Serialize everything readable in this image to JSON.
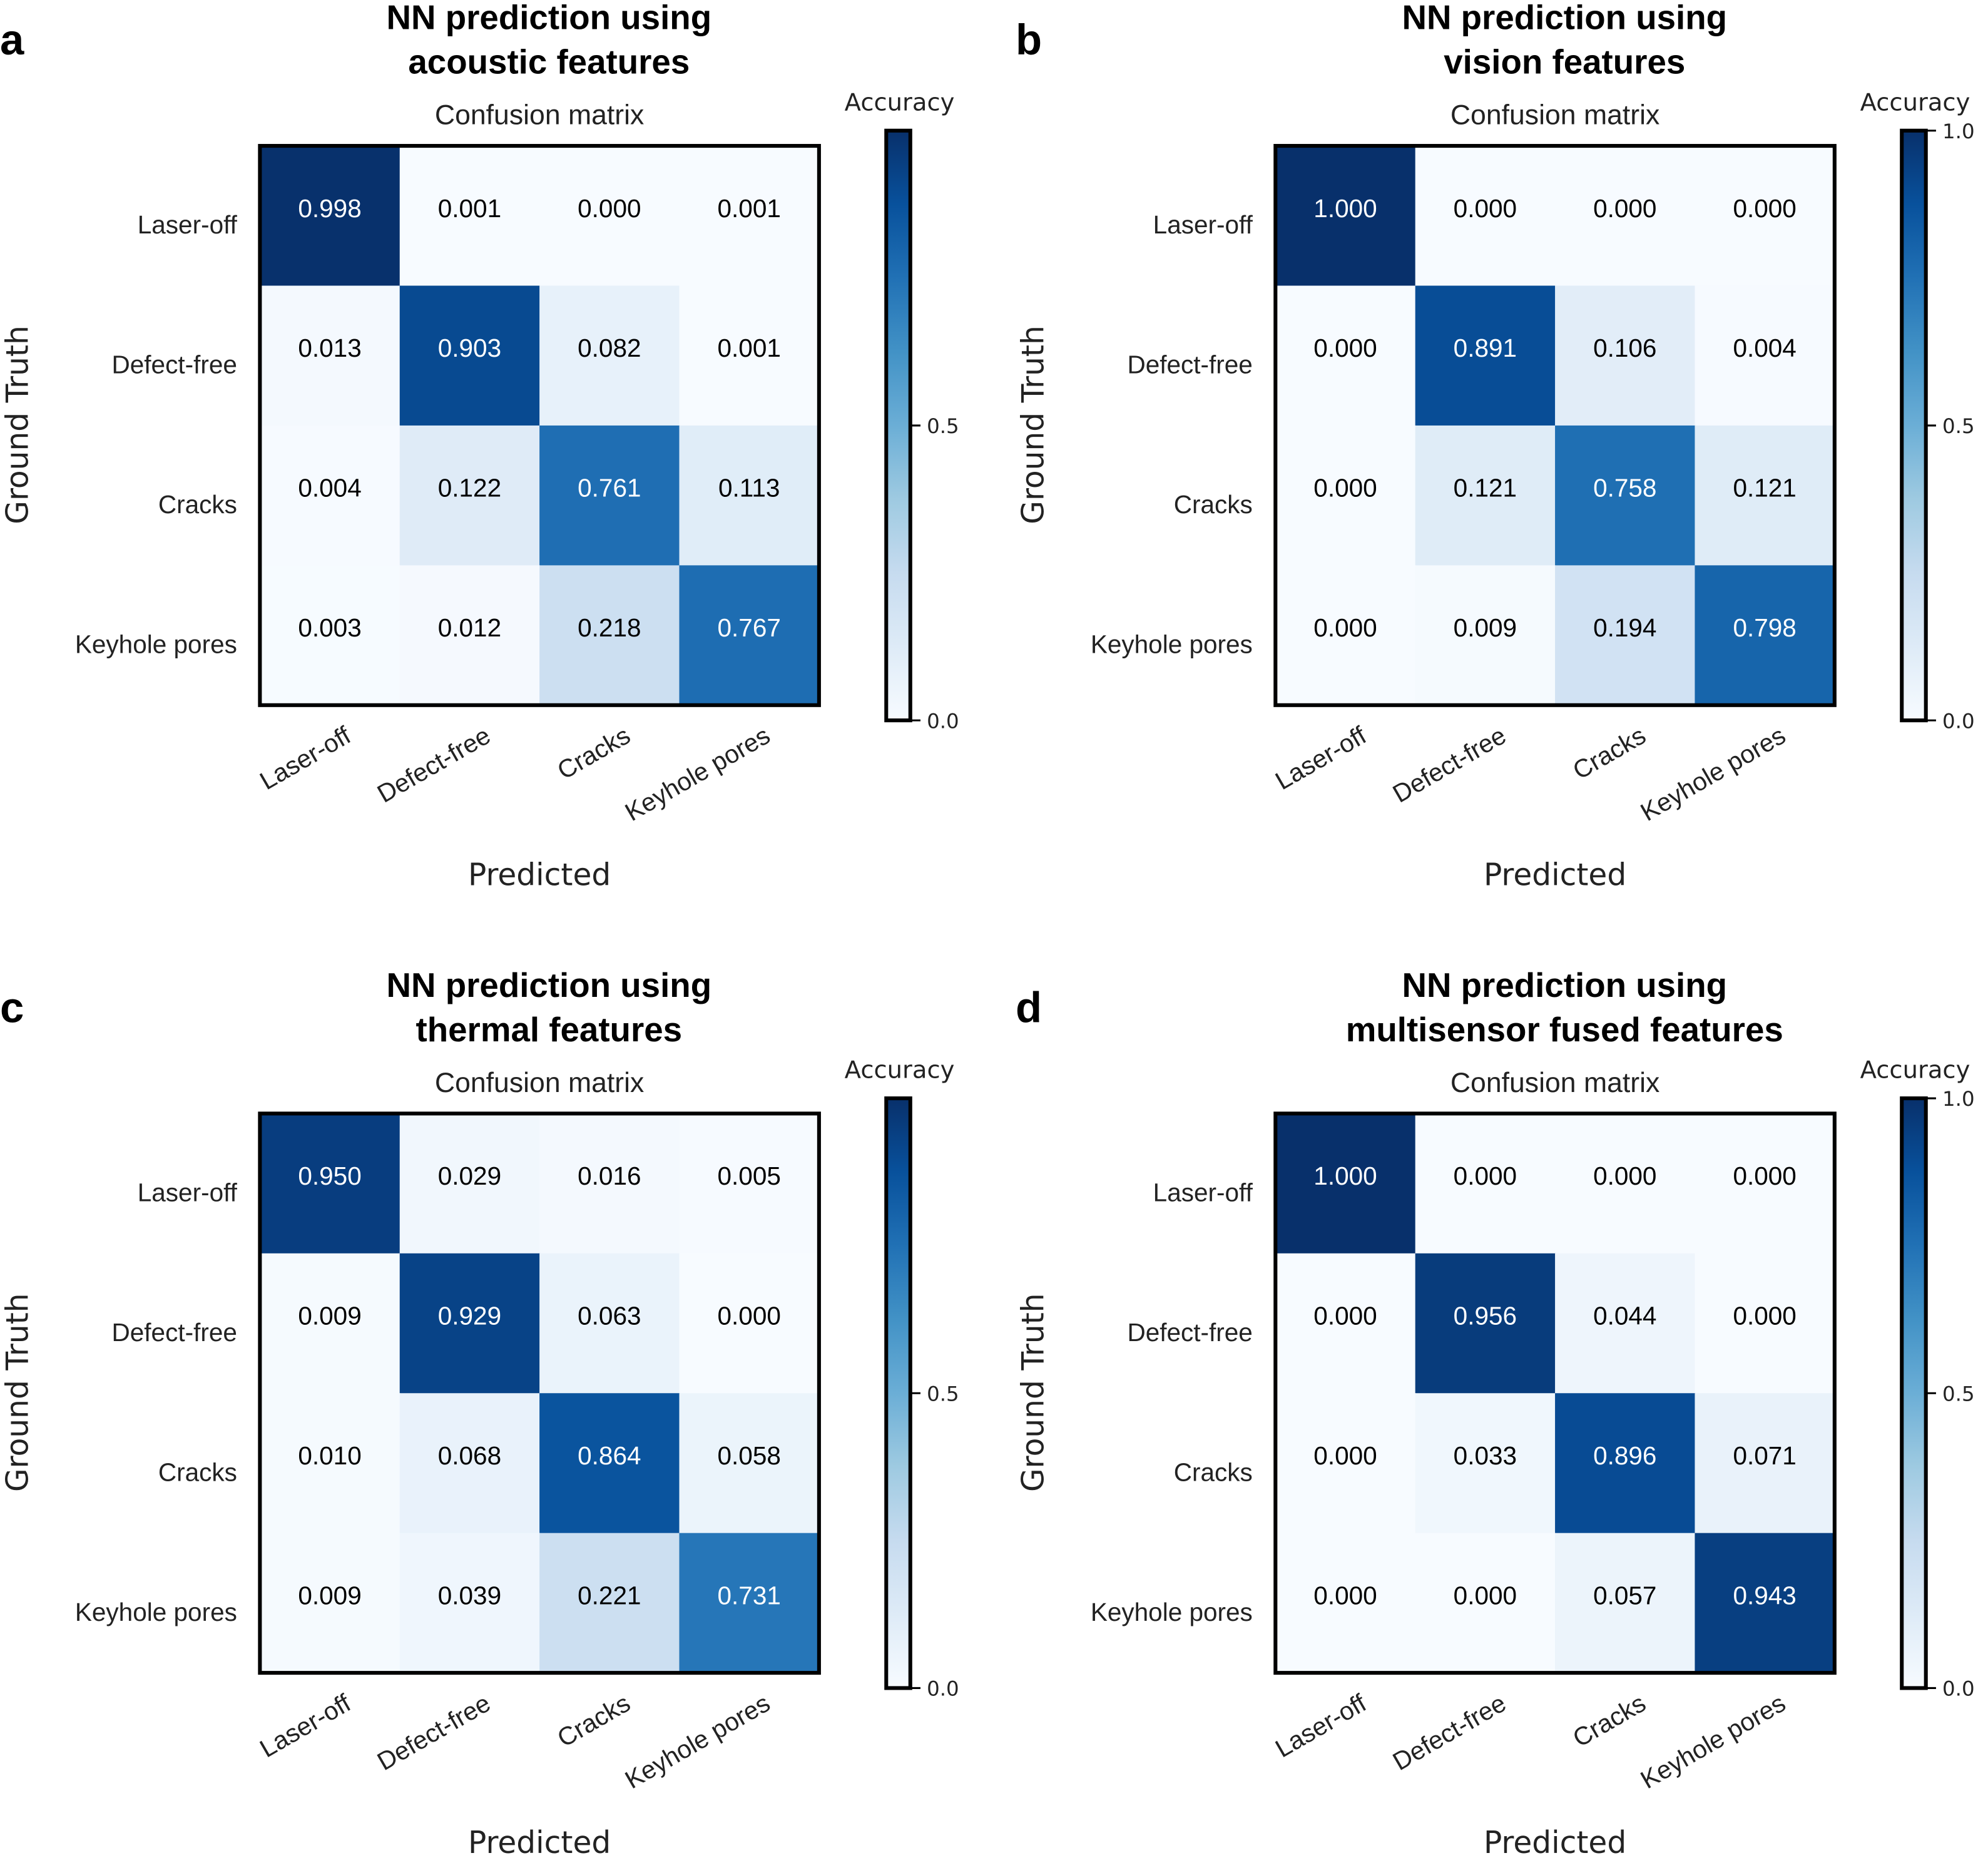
{
  "figure": {
    "colormap": "Blues",
    "colormap_stops": [
      "#f7fbff",
      "#deebf7",
      "#c6dbef",
      "#9ecae1",
      "#6baed6",
      "#4292c6",
      "#2171b5",
      "#08519c",
      "#08306b"
    ]
  },
  "chart_data": [
    {
      "type": "heatmap",
      "panel_label": "a",
      "title": [
        "NN prediction using",
        "acoustic features"
      ],
      "subtitle": "Confusion matrix",
      "xlabel": "Predicted",
      "ylabel": "Ground Truth",
      "x_categories": [
        "Laser-off",
        "Defect-free",
        "Cracks",
        "Keyhole pores"
      ],
      "y_categories": [
        "Laser-off",
        "Defect-free",
        "Cracks",
        "Keyhole pores"
      ],
      "values": [
        [
          0.998,
          0.001,
          0.0,
          0.001
        ],
        [
          0.013,
          0.903,
          0.082,
          0.001
        ],
        [
          0.004,
          0.122,
          0.761,
          0.113
        ],
        [
          0.003,
          0.012,
          0.218,
          0.767
        ]
      ],
      "colorbar": {
        "label": "Accuracy",
        "range": [
          0.0,
          1.0
        ],
        "ticks": [
          "0.0",
          "0.5"
        ]
      }
    },
    {
      "type": "heatmap",
      "panel_label": "b",
      "title": [
        "NN prediction using",
        "vision features"
      ],
      "subtitle": "Confusion matrix",
      "xlabel": "Predicted",
      "ylabel": "Ground Truth",
      "x_categories": [
        "Laser-off",
        "Defect-free",
        "Cracks",
        "Keyhole pores"
      ],
      "y_categories": [
        "Laser-off",
        "Defect-free",
        "Cracks",
        "Keyhole pores"
      ],
      "values": [
        [
          1.0,
          0.0,
          0.0,
          0.0
        ],
        [
          0.0,
          0.891,
          0.106,
          0.004
        ],
        [
          0.0,
          0.121,
          0.758,
          0.121
        ],
        [
          0.0,
          0.009,
          0.194,
          0.798
        ]
      ],
      "colorbar": {
        "label": "Accuracy",
        "range": [
          0.0,
          1.0
        ],
        "ticks": [
          "0.0",
          "0.5",
          "1.0"
        ]
      }
    },
    {
      "type": "heatmap",
      "panel_label": "c",
      "title": [
        "NN prediction using",
        "thermal features"
      ],
      "subtitle": "Confusion matrix",
      "xlabel": "Predicted",
      "ylabel": "Ground Truth",
      "x_categories": [
        "Laser-off",
        "Defect-free",
        "Cracks",
        "Keyhole pores"
      ],
      "y_categories": [
        "Laser-off",
        "Defect-free",
        "Cracks",
        "Keyhole pores"
      ],
      "values": [
        [
          0.95,
          0.029,
          0.016,
          0.005
        ],
        [
          0.009,
          0.929,
          0.063,
          0.0
        ],
        [
          0.01,
          0.068,
          0.864,
          0.058
        ],
        [
          0.009,
          0.039,
          0.221,
          0.731
        ]
      ],
      "colorbar": {
        "label": "Accuracy",
        "range": [
          0.0,
          1.0
        ],
        "ticks": [
          "0.0",
          "0.5"
        ]
      }
    },
    {
      "type": "heatmap",
      "panel_label": "d",
      "title": [
        "NN prediction using",
        "multisensor fused features"
      ],
      "subtitle": "Confusion matrix",
      "xlabel": "Predicted",
      "ylabel": "Ground Truth",
      "x_categories": [
        "Laser-off",
        "Defect-free",
        "Cracks",
        "Keyhole pores"
      ],
      "y_categories": [
        "Laser-off",
        "Defect-free",
        "Cracks",
        "Keyhole pores"
      ],
      "values": [
        [
          1.0,
          0.0,
          0.0,
          0.0
        ],
        [
          0.0,
          0.956,
          0.044,
          0.0
        ],
        [
          0.0,
          0.033,
          0.896,
          0.071
        ],
        [
          0.0,
          0.0,
          0.057,
          0.943
        ]
      ],
      "colorbar": {
        "label": "Accuracy",
        "range": [
          0.0,
          1.0
        ],
        "ticks": [
          "0.0",
          "0.5",
          "1.0"
        ]
      }
    }
  ]
}
